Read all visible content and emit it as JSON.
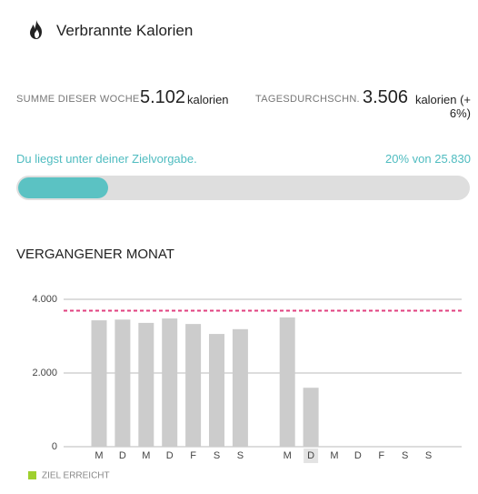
{
  "header": {
    "title": "Verbrannte Kalorien"
  },
  "summary": {
    "week_label": "SUMME DIESER WOCHE",
    "week_value": "5.102",
    "week_unit": "kalorien",
    "avg_label": "TAGESDURCHSCHN.",
    "avg_value": "3.506",
    "avg_unit": "kalorien (+ 6%)"
  },
  "progress": {
    "message": "Du liegst unter deiner Zielvorgabe.",
    "value": 20,
    "value_label": "20% von 25.830"
  },
  "section_title": "VERGANGENER MONAT",
  "chart_data": {
    "type": "bar",
    "categories": [
      "M",
      "D",
      "M",
      "D",
      "F",
      "S",
      "S",
      null,
      "M",
      "D",
      "M",
      "D",
      "F",
      "S",
      "S"
    ],
    "values": [
      3430,
      3450,
      3360,
      3480,
      3330,
      3060,
      3190,
      null,
      3510,
      1600,
      null,
      null,
      null,
      null,
      null
    ],
    "color": "#cccccc",
    "ylim": [
      0,
      4000
    ],
    "yticks": [
      0,
      {
        "value": 2000,
        "label": "2.000"
      },
      {
        "value": 4000,
        "label": "4.000"
      }
    ],
    "grid": true,
    "goal": 3690,
    "goal_color": "#e0407f",
    "highlighted_category": 9,
    "legend": {
      "label": "ZIEL ERREICHT",
      "color": "#9fd02e"
    }
  }
}
